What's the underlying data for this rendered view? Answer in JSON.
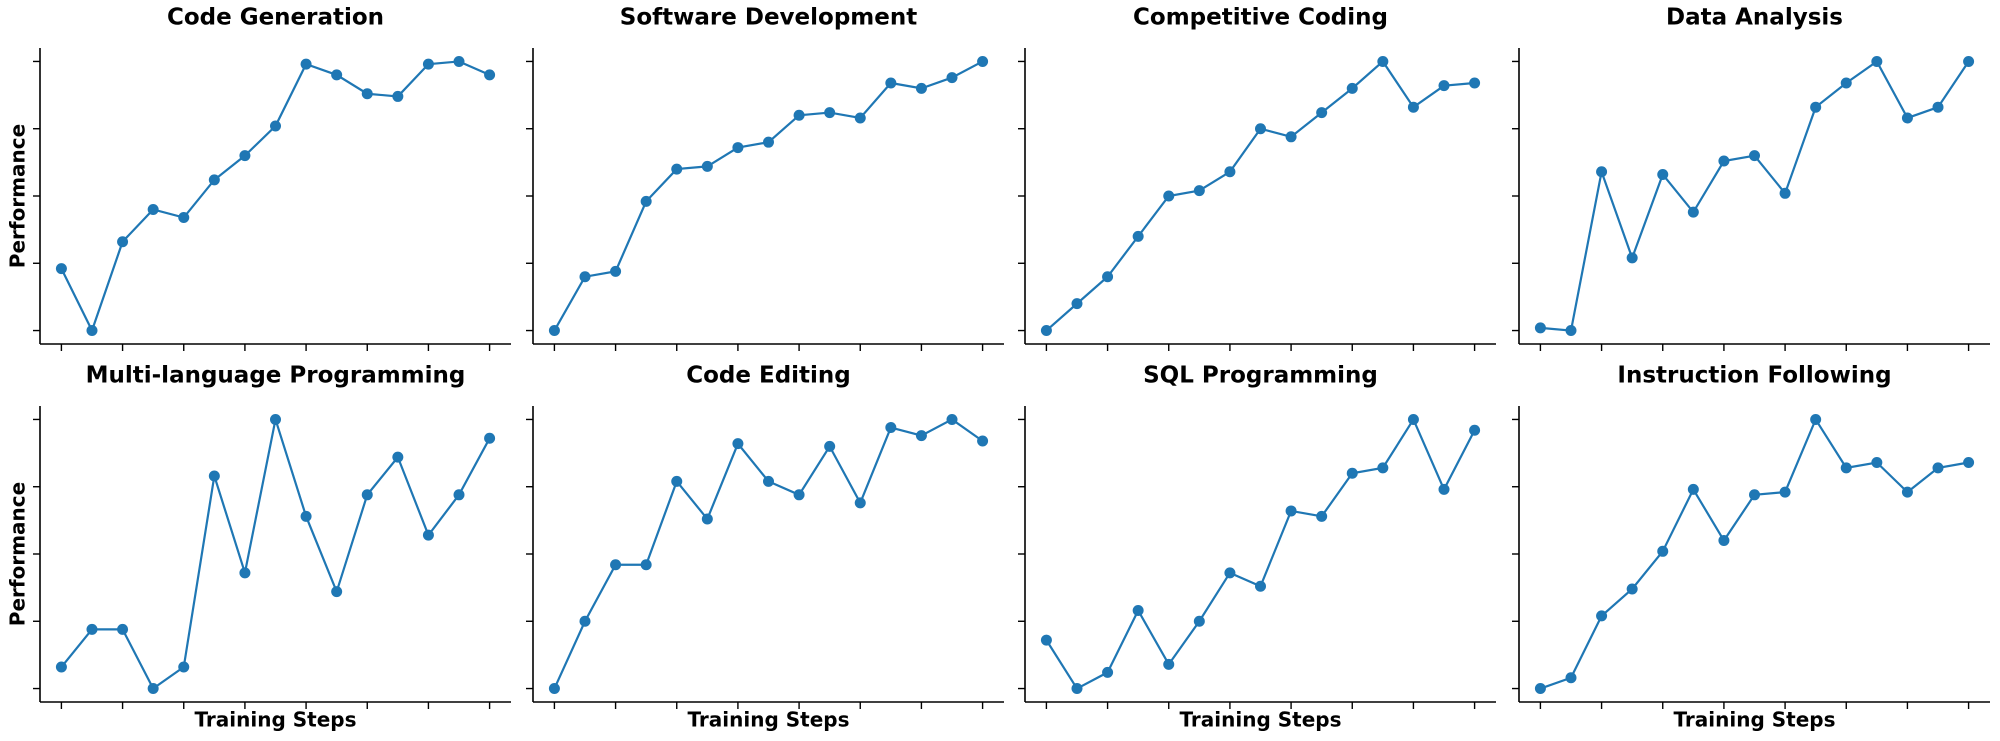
{
  "chart_data": [
    {
      "type": "line",
      "title": "Code Generation",
      "ylabel": "Performance",
      "color": "#1f77b4",
      "x": [
        0,
        1,
        2,
        3,
        4,
        5,
        6,
        7,
        8,
        9,
        10,
        11,
        12,
        13,
        14
      ],
      "values": [
        0.23,
        0,
        0.33,
        0.45,
        0.42,
        0.56,
        0.65,
        0.76,
        0.99,
        0.95,
        0.88,
        0.87,
        0.99,
        1.0,
        0.95
      ],
      "xlim": [
        -0.7,
        14.7
      ],
      "xticks": [
        0,
        2,
        4,
        6,
        8,
        10,
        12,
        14
      ],
      "ylim": [
        -0.05,
        1.05
      ],
      "yticks": [
        0,
        0.25,
        0.5,
        0.75,
        1
      ]
    },
    {
      "type": "line",
      "title": "Software Development",
      "color": "#1f77b4",
      "x": [
        0,
        1,
        2,
        3,
        4,
        5,
        6,
        7,
        8,
        9,
        10,
        11,
        12,
        13,
        14
      ],
      "values": [
        0,
        0.2,
        0.22,
        0.48,
        0.6,
        0.61,
        0.68,
        0.7,
        0.8,
        0.81,
        0.79,
        0.92,
        0.9,
        0.94,
        1.0
      ],
      "xlim": [
        -0.7,
        14.7
      ],
      "xticks": [
        0,
        2,
        4,
        6,
        8,
        10,
        12,
        14
      ],
      "ylim": [
        -0.05,
        1.05
      ],
      "yticks": [
        0,
        0.25,
        0.5,
        0.75,
        1
      ]
    },
    {
      "type": "line",
      "title": "Competitive Coding",
      "color": "#1f77b4",
      "x": [
        0,
        1,
        2,
        3,
        4,
        5,
        6,
        7,
        8,
        9,
        10,
        11,
        12,
        13,
        14
      ],
      "values": [
        0,
        0.1,
        0.2,
        0.35,
        0.5,
        0.52,
        0.59,
        0.75,
        0.72,
        0.81,
        0.9,
        1.0,
        0.83,
        0.91,
        0.92
      ],
      "xlim": [
        -0.7,
        14.7
      ],
      "xticks": [
        0,
        2,
        4,
        6,
        8,
        10,
        12,
        14
      ],
      "ylim": [
        -0.05,
        1.05
      ],
      "yticks": [
        0,
        0.25,
        0.5,
        0.75,
        1
      ]
    },
    {
      "type": "line",
      "title": "Data Analysis",
      "color": "#1f77b4",
      "x": [
        0,
        1,
        2,
        3,
        4,
        5,
        6,
        7,
        8,
        9,
        10,
        11,
        12,
        13,
        14
      ],
      "values": [
        0.01,
        0,
        0.59,
        0.27,
        0.58,
        0.44,
        0.63,
        0.65,
        0.51,
        0.83,
        0.92,
        1.0,
        0.79,
        0.83,
        1.0
      ],
      "xlim": [
        -0.7,
        14.7
      ],
      "xticks": [
        0,
        2,
        4,
        6,
        8,
        10,
        12,
        14
      ],
      "ylim": [
        -0.05,
        1.05
      ],
      "yticks": [
        0,
        0.25,
        0.5,
        0.75,
        1
      ]
    },
    {
      "type": "line",
      "title": "Multi-language Programming",
      "ylabel": "Performance",
      "xlabel": "Training Steps",
      "color": "#1f77b4",
      "x": [
        0,
        1,
        2,
        3,
        4,
        5,
        6,
        7,
        8,
        9,
        10,
        11,
        12,
        13,
        14
      ],
      "values": [
        0.08,
        0.22,
        0.22,
        0,
        0.08,
        0.79,
        0.43,
        1.0,
        0.64,
        0.36,
        0.72,
        0.86,
        0.57,
        0.72,
        0.93
      ],
      "xlim": [
        -0.7,
        14.7
      ],
      "xticks": [
        0,
        2,
        4,
        6,
        8,
        10,
        12,
        14
      ],
      "ylim": [
        -0.05,
        1.05
      ],
      "yticks": [
        0,
        0.25,
        0.5,
        0.75,
        1
      ]
    },
    {
      "type": "line",
      "title": "Code Editing",
      "xlabel": "Training Steps",
      "color": "#1f77b4",
      "x": [
        0,
        1,
        2,
        3,
        4,
        5,
        6,
        7,
        8,
        9,
        10,
        11,
        12,
        13,
        14
      ],
      "values": [
        0,
        0.25,
        0.46,
        0.46,
        0.77,
        0.63,
        0.91,
        0.77,
        0.72,
        0.9,
        0.69,
        0.97,
        0.94,
        1.0,
        0.92
      ],
      "xlim": [
        -0.7,
        14.7
      ],
      "xticks": [
        0,
        2,
        4,
        6,
        8,
        10,
        12,
        14
      ],
      "ylim": [
        -0.05,
        1.05
      ],
      "yticks": [
        0,
        0.25,
        0.5,
        0.75,
        1
      ]
    },
    {
      "type": "line",
      "title": "SQL Programming",
      "xlabel": "Training Steps",
      "color": "#1f77b4",
      "x": [
        0,
        1,
        2,
        3,
        4,
        5,
        6,
        7,
        8,
        9,
        10,
        11,
        12,
        13,
        14
      ],
      "values": [
        0.18,
        0,
        0.06,
        0.29,
        0.09,
        0.25,
        0.43,
        0.38,
        0.66,
        0.64,
        0.8,
        0.82,
        1.0,
        0.74,
        0.96
      ],
      "xlim": [
        -0.7,
        14.7
      ],
      "xticks": [
        0,
        2,
        4,
        6,
        8,
        10,
        12,
        14
      ],
      "ylim": [
        -0.05,
        1.05
      ],
      "yticks": [
        0,
        0.25,
        0.5,
        0.75,
        1
      ]
    },
    {
      "type": "line",
      "title": "Instruction Following",
      "xlabel": "Training Steps",
      "color": "#1f77b4",
      "x": [
        0,
        1,
        2,
        3,
        4,
        5,
        6,
        7,
        8,
        9,
        10,
        11,
        12,
        13,
        14
      ],
      "values": [
        0,
        0.04,
        0.27,
        0.37,
        0.51,
        0.74,
        0.55,
        0.72,
        0.73,
        1.0,
        0.82,
        0.84,
        0.73,
        0.82,
        0.84
      ],
      "xlim": [
        -0.7,
        14.7
      ],
      "xticks": [
        0,
        2,
        4,
        6,
        8,
        10,
        12,
        14
      ],
      "ylim": [
        -0.05,
        1.05
      ],
      "yticks": [
        0,
        0.25,
        0.5,
        0.75,
        1
      ]
    }
  ]
}
